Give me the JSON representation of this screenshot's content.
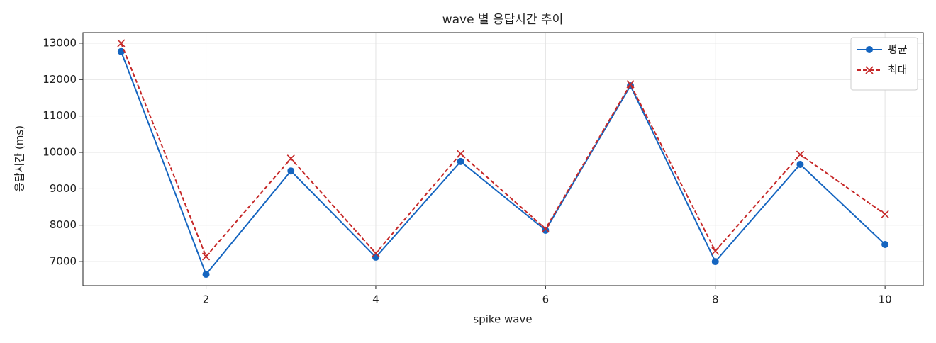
{
  "chart_data": {
    "type": "line",
    "title": "wave 별 응답시간 추이",
    "x_label": "spike wave",
    "y_label": "응답시간 (ms)",
    "x": [
      1,
      2,
      3,
      4,
      5,
      6,
      7,
      8,
      9,
      10
    ],
    "series": [
      {
        "name": "평균",
        "color": "#1565c0",
        "marker": "o",
        "dashed": false,
        "values": [
          12770,
          6650,
          9490,
          7120,
          9750,
          7860,
          11830,
          7000,
          9670,
          7470
        ]
      },
      {
        "name": "최대",
        "color": "#c62828",
        "marker": "x",
        "dashed": true,
        "values": [
          13000,
          7140,
          9830,
          7230,
          9960,
          7900,
          11870,
          7290,
          9940,
          8300
        ]
      }
    ],
    "xlim": [
      0.55,
      10.45
    ],
    "ylim": [
      6340,
      13290
    ],
    "xticks": [
      2,
      4,
      6,
      8,
      10
    ],
    "yticks": [
      7000,
      8000,
      9000,
      10000,
      11000,
      12000,
      13000
    ],
    "grid": true,
    "legend": "upper right"
  }
}
